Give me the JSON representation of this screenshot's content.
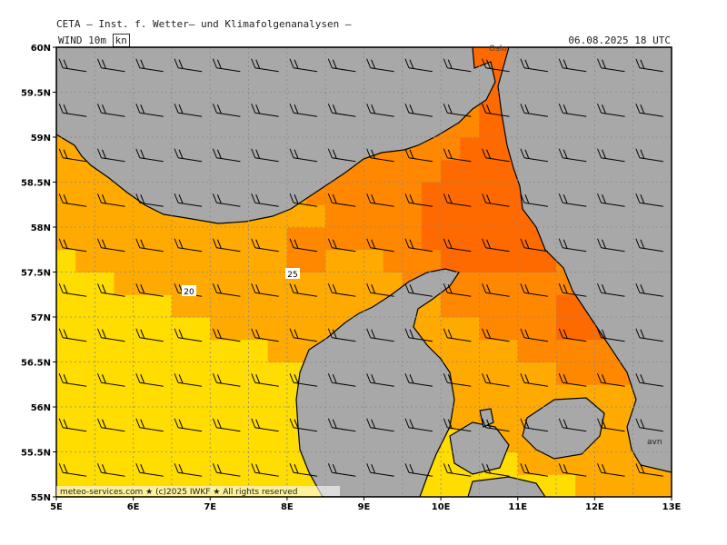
{
  "header": {
    "title": "CETA — Inst. f. Wetter— und Klimafolgenanalysen —",
    "parameter": "WIND 10m",
    "unit": "kn",
    "datetime": "06.08.2025 18 UTC"
  },
  "axes": {
    "lat_labels": [
      "60N",
      "59.5N",
      "59N",
      "58.5N",
      "58N",
      "57.5N",
      "57N",
      "56.5N",
      "56N",
      "55.5N",
      "55N"
    ],
    "lon_labels": [
      "5E",
      "6E",
      "7E",
      "8E",
      "9E",
      "10E",
      "11E",
      "12E",
      "13E"
    ],
    "lon_range": [
      5,
      13
    ],
    "lat_range": [
      55,
      60
    ]
  },
  "contour_labels": [
    "20",
    "25"
  ],
  "place_labels": [
    "Oslo",
    "avn"
  ],
  "footer": "meteo-services.com ★ (c)2025 IWKF ★ All rights reserved",
  "colors": {
    "land": "#a8a8a8",
    "sea": "#ffffff",
    "wind_15_20": "#ffdd00",
    "wind_20_25": "#ffaa00",
    "wind_25_30": "#ff8800",
    "wind_30_35": "#ff6a00"
  }
}
